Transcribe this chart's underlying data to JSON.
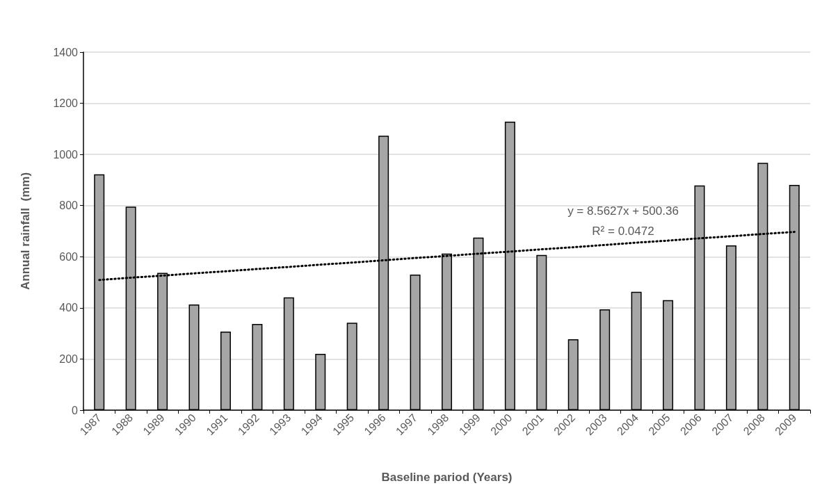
{
  "chart_data": {
    "type": "bar",
    "xlabel": "Baseline pariod (Years)",
    "ylabel": "Annual rainfall  (mm)",
    "categories": [
      "1987",
      "1988",
      "1989",
      "1990",
      "1991",
      "1992",
      "1993",
      "1994",
      "1995",
      "1996",
      "1997",
      "1998",
      "1999",
      "2000",
      "2001",
      "2002",
      "2003",
      "2004",
      "2005",
      "2006",
      "2007",
      "2008",
      "2009"
    ],
    "series": [
      {
        "color": "#a6a6a6",
        "values": [
          922,
          796,
          537,
          413,
          307,
          337,
          441,
          220,
          342,
          1073,
          530,
          612,
          675,
          1128,
          607,
          277,
          394,
          463,
          430,
          879,
          644,
          967,
          881
        ]
      },
      {
        "type": "line",
        "color": "#000000",
        "line_style": "dotted",
        "marker": "none",
        "values": [
          509,
          518,
          526,
          535,
          543,
          552,
          560,
          569,
          577,
          586,
          595,
          603,
          612,
          620,
          629,
          637,
          646,
          655,
          663,
          672,
          680,
          689,
          697
        ]
      }
    ],
    "annotations": [
      "y = 8.5627x + 500.36",
      "R² = 0.0472"
    ],
    "ylim": [
      0,
      1400
    ],
    "yticks": [
      0,
      200,
      400,
      600,
      800,
      1000,
      1200,
      1400
    ],
    "grid": "y"
  }
}
